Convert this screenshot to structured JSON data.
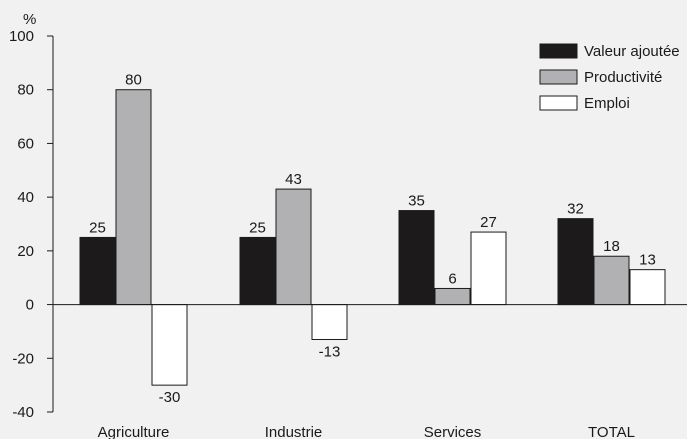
{
  "chart_data": {
    "type": "bar",
    "unit_label": "%",
    "categories": [
      "Agriculture",
      "Industrie",
      "Services",
      "TOTAL"
    ],
    "series": [
      {
        "name": "Valeur ajoutée",
        "values": [
          25,
          25,
          35,
          32
        ],
        "color": "#1c1a1b"
      },
      {
        "name": "Productivité",
        "values": [
          80,
          43,
          6,
          18
        ],
        "color": "#b1b1b3"
      },
      {
        "name": "Emploi",
        "values": [
          -30,
          -13,
          27,
          13
        ],
        "color": "#ffffff"
      }
    ],
    "ylim": [
      -40,
      100
    ],
    "yticks": [
      -40,
      -20,
      0,
      20,
      40,
      60,
      80,
      100
    ],
    "legend_position": "top-right",
    "grid": false,
    "background": "#f1f1f1"
  }
}
